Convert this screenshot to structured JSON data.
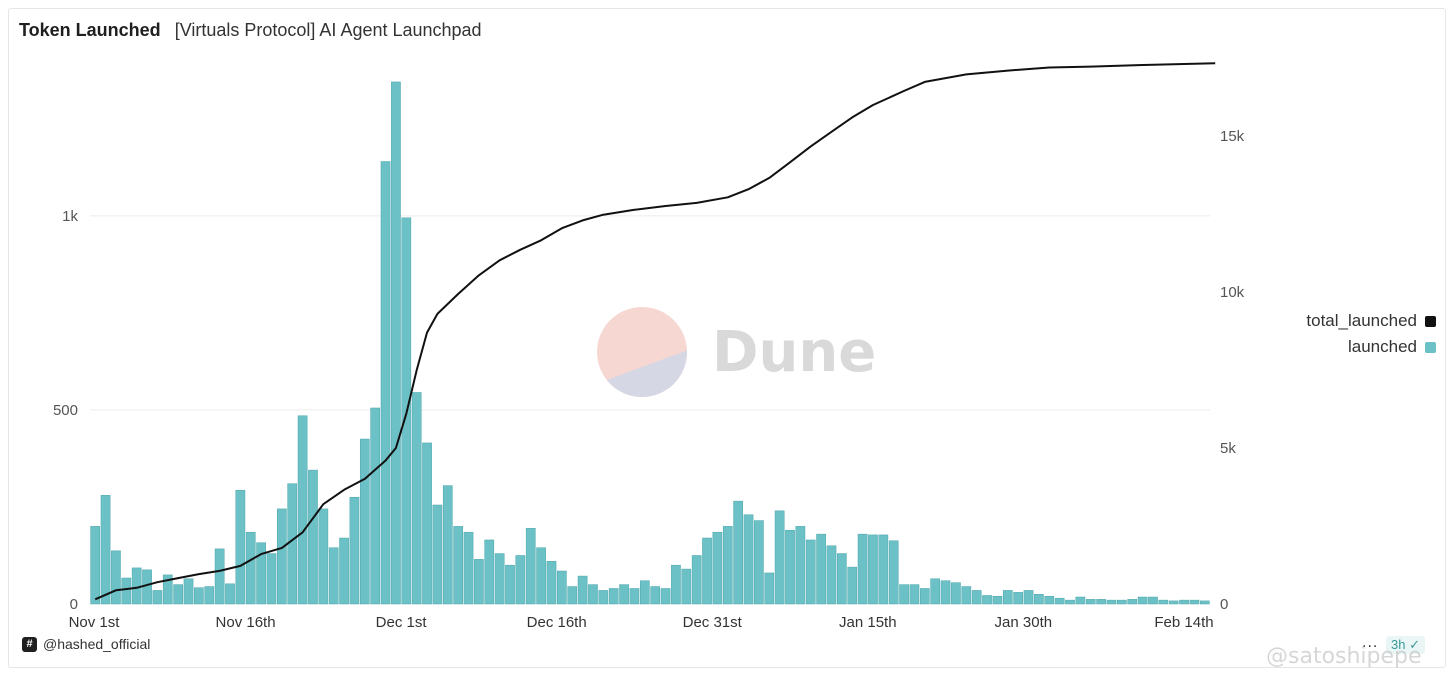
{
  "header": {
    "title": "Token Launched",
    "subtitle": "[Virtuals Protocol] AI Agent Launchpad"
  },
  "branding": {
    "dune_label": "Dune",
    "author": "@hashed_official",
    "refresh_badge": "3h",
    "watermark": "@satoshipepe",
    "menu": "..."
  },
  "colors": {
    "bar": "#6cc1c6",
    "line": "#111111",
    "grid": "#ececec",
    "axis_text": "#555555"
  },
  "chart_data": {
    "type": "bar",
    "x_start": "2024-11-01",
    "x_tick_labels": [
      "Nov 1st",
      "Nov 16th",
      "Dec 1st",
      "Dec 16th",
      "Dec 31st",
      "Jan 15th",
      "Jan 30th",
      "Feb 14th"
    ],
    "left_axis": {
      "ticks": [
        0,
        500,
        1000
      ],
      "tick_labels": [
        "0",
        "500",
        "1k"
      ],
      "ylim": [
        0,
        1350
      ]
    },
    "right_axis": {
      "ticks": [
        0,
        5000,
        10000,
        15000
      ],
      "tick_labels": [
        "0",
        "5k",
        "10k",
        "15k"
      ],
      "ylim": [
        0,
        16800
      ]
    },
    "grid": true,
    "legend_position": "right",
    "series": [
      {
        "name": "launched",
        "type": "bar",
        "axis": "left",
        "values": [
          200,
          280,
          137,
          67,
          93,
          88,
          35,
          75,
          50,
          65,
          42,
          45,
          142,
          52,
          293,
          185,
          158,
          130,
          245,
          310,
          485,
          345,
          245,
          145,
          170,
          275,
          425,
          505,
          1140,
          1345,
          995,
          545,
          415,
          255,
          305,
          200,
          185,
          115,
          165,
          130,
          100,
          125,
          195,
          145,
          110,
          85,
          45,
          72,
          50,
          35,
          40,
          50,
          40,
          60,
          45,
          40,
          100,
          90,
          125,
          170,
          185,
          200,
          265,
          230,
          215,
          80,
          240,
          190,
          200,
          165,
          180,
          150,
          130,
          95,
          180,
          178,
          178,
          163,
          50,
          50,
          40,
          65,
          60,
          55,
          45,
          35,
          22,
          20,
          35,
          30,
          35,
          25,
          20,
          15,
          10,
          18,
          12,
          12,
          10,
          10,
          12,
          18,
          18,
          10,
          8,
          10,
          10,
          8
        ]
      },
      {
        "name": "total_launched",
        "type": "line",
        "axis": "right",
        "points": [
          [
            0,
            150
          ],
          [
            2,
            440
          ],
          [
            4,
            520
          ],
          [
            6,
            700
          ],
          [
            8,
            830
          ],
          [
            10,
            960
          ],
          [
            12,
            1060
          ],
          [
            14,
            1220
          ],
          [
            16,
            1600
          ],
          [
            18,
            1800
          ],
          [
            20,
            2300
          ],
          [
            22,
            3200
          ],
          [
            24,
            3660
          ],
          [
            26,
            4010
          ],
          [
            28,
            4600
          ],
          [
            29,
            5000
          ],
          [
            30,
            6100
          ],
          [
            31,
            7500
          ],
          [
            32,
            8700
          ],
          [
            33,
            9300
          ],
          [
            35,
            9940
          ],
          [
            37,
            10540
          ],
          [
            39,
            11020
          ],
          [
            41,
            11360
          ],
          [
            43,
            11660
          ],
          [
            45,
            12050
          ],
          [
            47,
            12300
          ],
          [
            49,
            12480
          ],
          [
            52,
            12640
          ],
          [
            55,
            12760
          ],
          [
            58,
            12860
          ],
          [
            61,
            13040
          ],
          [
            63,
            13300
          ],
          [
            65,
            13660
          ],
          [
            67,
            14160
          ],
          [
            69,
            14670
          ],
          [
            71,
            15140
          ],
          [
            73,
            15600
          ],
          [
            75,
            16000
          ],
          [
            78,
            16450
          ],
          [
            80,
            16740
          ],
          [
            84,
            16980
          ],
          [
            88,
            17100
          ],
          [
            92,
            17200
          ],
          [
            96,
            17230
          ],
          [
            101,
            17280
          ],
          [
            106,
            17320
          ],
          [
            108,
            17340
          ]
        ]
      }
    ]
  }
}
